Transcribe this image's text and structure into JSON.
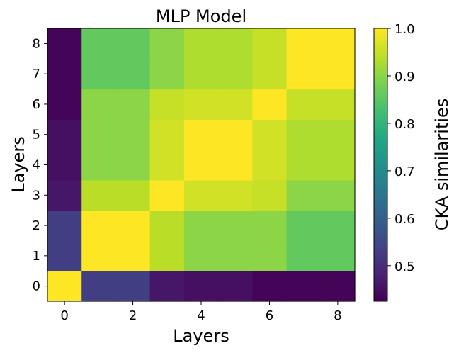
{
  "chart_data": {
    "type": "heatmap",
    "title": "MLP Model",
    "xlabel": "Layers",
    "ylabel": "Layers",
    "x_categories": [
      0,
      1,
      2,
      3,
      4,
      5,
      6,
      7,
      8
    ],
    "y_categories": [
      0,
      1,
      2,
      3,
      4,
      5,
      6,
      7,
      8
    ],
    "x_tick_labels": [
      "0",
      "2",
      "4",
      "6",
      "8"
    ],
    "y_tick_labels": [
      "0",
      "1",
      "2",
      "3",
      "4",
      "5",
      "6",
      "7",
      "8"
    ],
    "values": [
      [
        1.0,
        0.53,
        0.53,
        0.46,
        0.45,
        0.45,
        0.43,
        0.43,
        0.43
      ],
      [
        0.53,
        1.0,
        1.0,
        0.94,
        0.9,
        0.9,
        0.9,
        0.86,
        0.86
      ],
      [
        0.53,
        1.0,
        1.0,
        0.94,
        0.9,
        0.9,
        0.9,
        0.86,
        0.86
      ],
      [
        0.46,
        0.94,
        0.94,
        1.0,
        0.96,
        0.96,
        0.95,
        0.9,
        0.9
      ],
      [
        0.45,
        0.9,
        0.9,
        0.96,
        1.0,
        1.0,
        0.96,
        0.93,
        0.93
      ],
      [
        0.45,
        0.9,
        0.9,
        0.96,
        1.0,
        1.0,
        0.96,
        0.93,
        0.93
      ],
      [
        0.43,
        0.9,
        0.9,
        0.95,
        0.96,
        0.96,
        1.0,
        0.95,
        0.95
      ],
      [
        0.43,
        0.86,
        0.86,
        0.9,
        0.93,
        0.93,
        0.95,
        1.0,
        1.0
      ],
      [
        0.43,
        0.86,
        0.86,
        0.9,
        0.93,
        0.93,
        0.95,
        1.0,
        1.0
      ]
    ],
    "colorbar": {
      "label": "CKA similarities",
      "vmin": 0.425,
      "vmax": 1.0,
      "ticks": [
        0.5,
        0.6,
        0.7,
        0.8,
        0.9,
        1.0
      ],
      "tick_labels": [
        "0.5",
        "0.6",
        "0.7",
        "0.8",
        "0.9",
        "1.0"
      ],
      "colormap": "viridis"
    },
    "grid": false
  }
}
